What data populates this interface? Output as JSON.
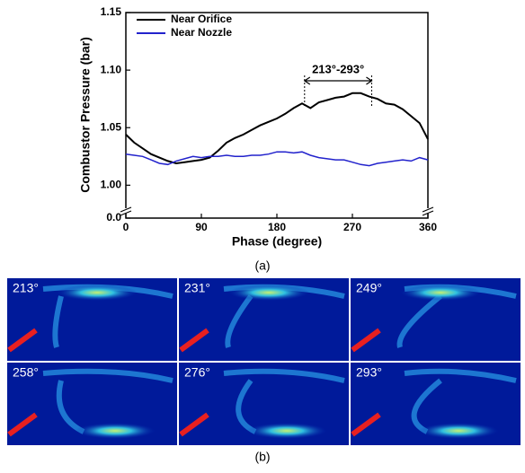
{
  "chart_data": {
    "type": "line",
    "y_label": "Combustor Pressure (bar)",
    "x_label": "Phase (degree)",
    "x": [
      0,
      10,
      20,
      30,
      40,
      50,
      60,
      70,
      80,
      90,
      100,
      110,
      120,
      130,
      140,
      150,
      160,
      170,
      180,
      190,
      200,
      210,
      220,
      230,
      240,
      250,
      260,
      270,
      280,
      290,
      300,
      310,
      320,
      330,
      340,
      350,
      360
    ],
    "series": [
      {
        "name": "Near Orifice",
        "color": "#000000",
        "values": [
          1.044,
          1.037,
          1.032,
          1.027,
          1.024,
          1.021,
          1.019,
          1.02,
          1.021,
          1.022,
          1.024,
          1.03,
          1.037,
          1.041,
          1.044,
          1.048,
          1.052,
          1.055,
          1.058,
          1.062,
          1.067,
          1.071,
          1.067,
          1.072,
          1.074,
          1.076,
          1.077,
          1.08,
          1.08,
          1.077,
          1.075,
          1.071,
          1.07,
          1.066,
          1.06,
          1.054,
          1.04
        ]
      },
      {
        "name": "Near Nozzle",
        "color": "#2222cc",
        "values": [
          1.027,
          1.026,
          1.025,
          1.022,
          1.019,
          1.018,
          1.021,
          1.023,
          1.025,
          1.024,
          1.025,
          1.025,
          1.026,
          1.025,
          1.025,
          1.026,
          1.026,
          1.027,
          1.029,
          1.029,
          1.028,
          1.029,
          1.026,
          1.024,
          1.023,
          1.022,
          1.022,
          1.02,
          1.018,
          1.017,
          1.019,
          1.02,
          1.021,
          1.022,
          1.021,
          1.024,
          1.022
        ]
      }
    ],
    "xlim": [
      0,
      360
    ],
    "xticks": [
      0,
      90,
      180,
      270,
      360
    ],
    "ylim": [
      0,
      1.15
    ],
    "y_break": [
      0,
      0.98
    ],
    "yticks": [
      {
        "value": 0,
        "label": "0.0"
      },
      {
        "value": 1.0,
        "label": "1.00"
      },
      {
        "value": 1.05,
        "label": "1.05"
      },
      {
        "value": 1.1,
        "label": "1.10"
      },
      {
        "value": 1.15,
        "label": "1.15"
      }
    ],
    "legend": "upper left",
    "annotation": {
      "text": "213°-293°",
      "x": [
        213,
        293
      ]
    },
    "caption": "(a)"
  },
  "panels": {
    "labels": [
      "213°",
      "231°",
      "249°",
      "258°",
      "276°",
      "293°"
    ],
    "caption": "(b)"
  }
}
